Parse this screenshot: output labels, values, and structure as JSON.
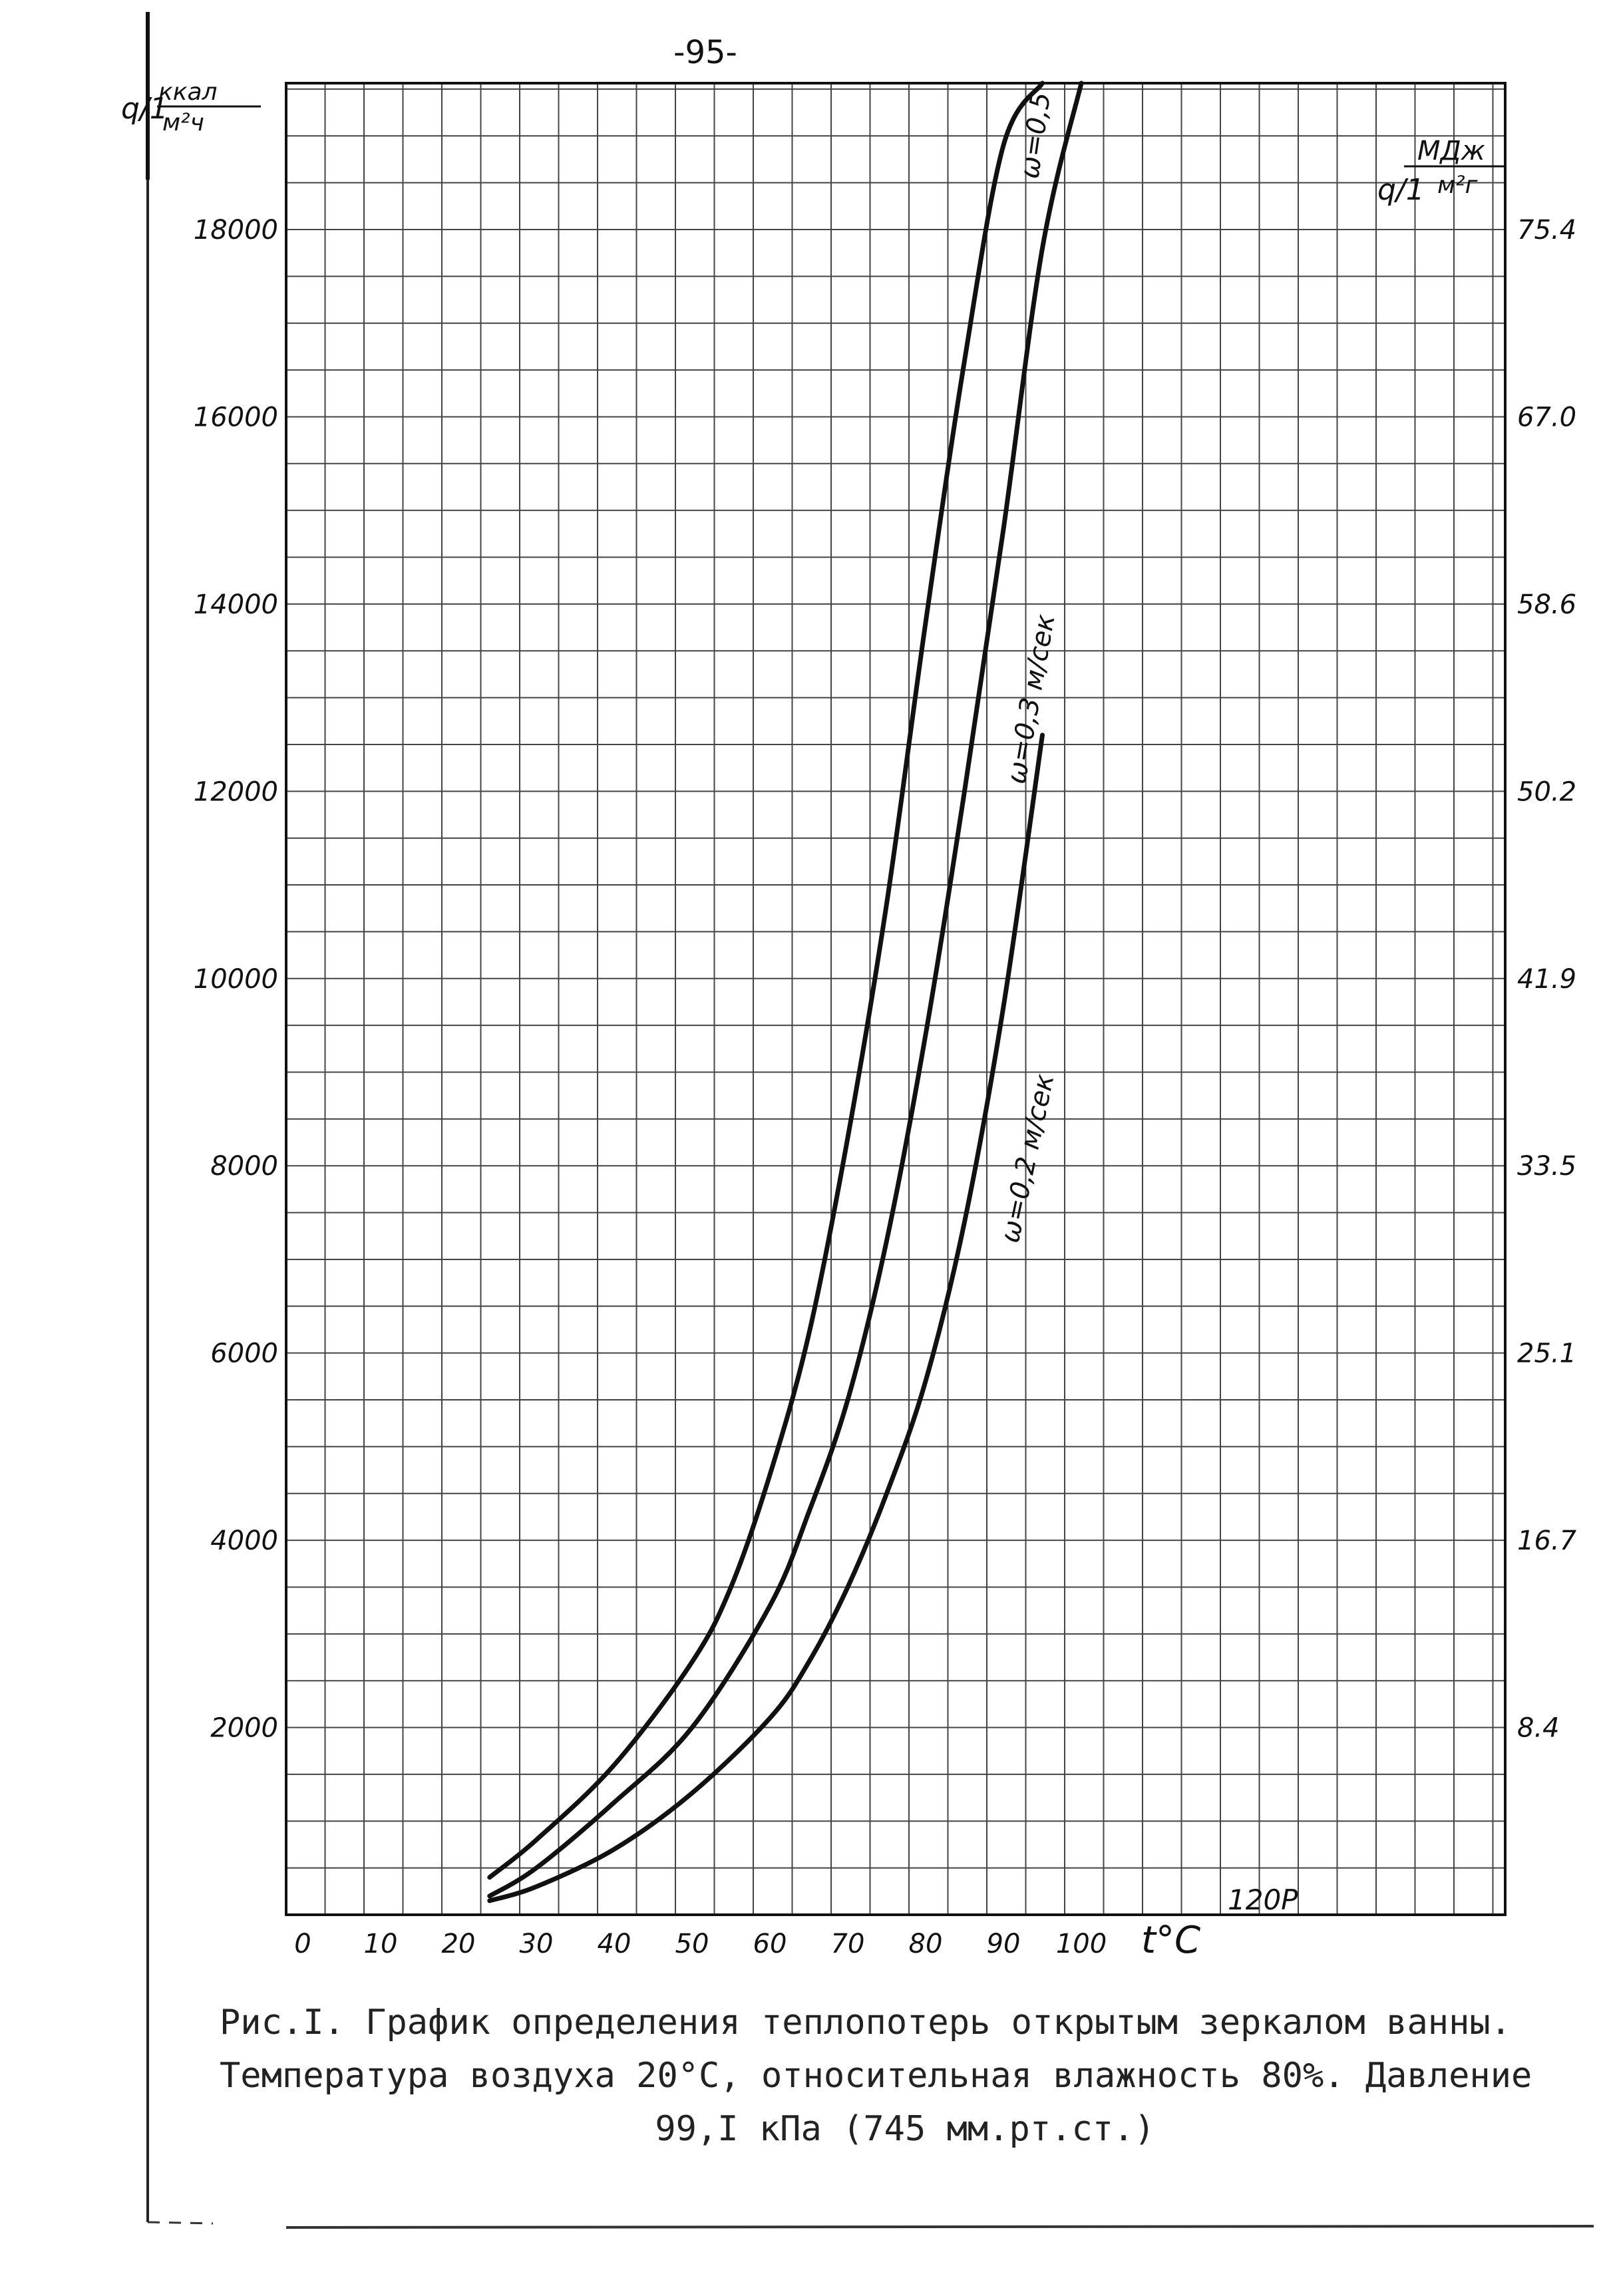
{
  "page_number": "-95-",
  "left_unit": {
    "symbol": "q/1",
    "numerator": "ккал",
    "denominator": "м²ч"
  },
  "right_unit": {
    "symbol": "q/1",
    "numerator": "МДж",
    "denominator": "м²г"
  },
  "caption": {
    "line1": "Рис.I. График определения теплопотерь открытым зеркалом ванны.",
    "line2": "Температура воздуха 20°С, относительная влажность 80%. Давление",
    "line3": "99,I кПа (745 мм.рт.ст.)"
  },
  "stamp_text": "120P",
  "chart_data": {
    "type": "line",
    "title": "",
    "xlabel": "t°C",
    "ylabel": "q/1 ккал/м²ч",
    "y2label": "q/1 МДж/м²г",
    "xlim": [
      0,
      120
    ],
    "ylim": [
      0,
      19600
    ],
    "x_ticks": [
      0,
      10,
      20,
      30,
      40,
      50,
      60,
      70,
      80,
      90,
      100
    ],
    "y_ticks": [
      2000,
      4000,
      6000,
      8000,
      10000,
      12000,
      14000,
      16000,
      18000
    ],
    "y_tick_labels": [
      "2000",
      "4000",
      "6000",
      "8000",
      "10000",
      "12000",
      "14000",
      "16000",
      "18000"
    ],
    "y2_tick_labels": [
      "8.4",
      "16.7",
      "25.1",
      "33.5",
      "41.9",
      "50.2",
      "58.6",
      "67.0",
      "75.4"
    ],
    "grid": true,
    "series": [
      {
        "name": "ω=0,5",
        "x": [
          24,
          30,
          40,
          50,
          55,
          60,
          65,
          70,
          75,
          80,
          85,
          90,
          95
        ],
        "y": [
          400,
          800,
          1600,
          2700,
          3500,
          4700,
          6200,
          8300,
          10800,
          13800,
          16600,
          18900,
          19600
        ]
      },
      {
        "name": "ω=0,3 м/сек",
        "x": [
          24,
          30,
          40,
          50,
          60,
          65,
          70,
          75,
          80,
          85,
          90,
          95,
          100
        ],
        "y": [
          200,
          500,
          1200,
          2000,
          3300,
          4300,
          5500,
          7200,
          9400,
          12000,
          14800,
          17800,
          19600
        ]
      },
      {
        "name": "ω=0,2 м/сек",
        "x": [
          24,
          30,
          40,
          50,
          60,
          65,
          70,
          75,
          80,
          85,
          90,
          95
        ],
        "y": [
          150,
          300,
          700,
          1300,
          2100,
          2700,
          3500,
          4500,
          5700,
          7400,
          9700,
          12600
        ]
      }
    ],
    "line_color": "#111111"
  }
}
